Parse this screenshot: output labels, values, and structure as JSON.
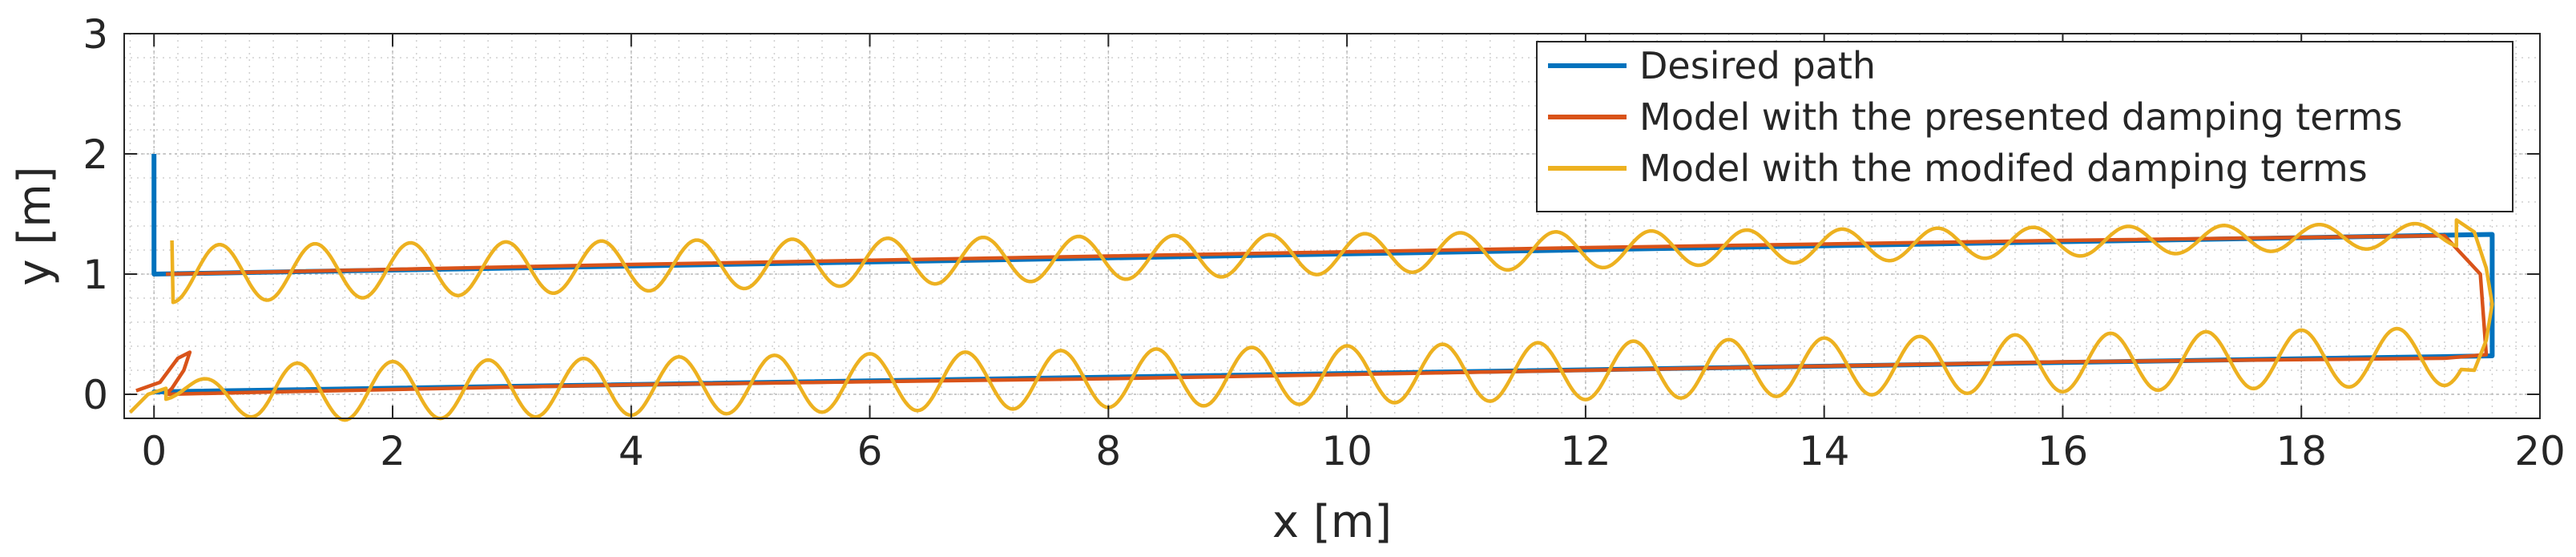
{
  "chart_data": {
    "type": "line",
    "title": "",
    "xlabel": "x [m]",
    "ylabel": "y [m]",
    "xlim": [
      -0.25,
      20
    ],
    "ylim": [
      -0.2,
      3
    ],
    "xticks": [
      0,
      2,
      4,
      6,
      8,
      10,
      12,
      14,
      16,
      18,
      20
    ],
    "yticks": [
      0,
      1,
      2,
      3
    ],
    "grid": true,
    "minor_grid": true,
    "legend_position": "top-right",
    "series": [
      {
        "name": "Desired path",
        "color": "#0072BD",
        "x": [
          0,
          0,
          19.6,
          19.6,
          0,
          0,
          0
        ],
        "y": [
          0,
          0.02,
          0.32,
          1.33,
          1.0,
          1.5,
          2.0
        ]
      },
      {
        "name": "Model with the presented damping terms",
        "color": "#D95319",
        "x": [
          -0.15,
          0.05,
          0.2,
          0.3,
          0.25,
          0.15,
          0.1,
          1.0,
          4.0,
          8.0,
          12.0,
          16.0,
          19.2,
          19.55,
          19.5,
          19.2,
          16.0,
          12.0,
          8.0,
          4.0,
          0.1
        ],
        "y": [
          0.03,
          0.1,
          0.3,
          0.35,
          0.2,
          0.05,
          0.0,
          0.02,
          0.08,
          0.13,
          0.2,
          0.27,
          0.3,
          0.33,
          1.0,
          1.32,
          1.28,
          1.22,
          1.15,
          1.08,
          1.0
        ]
      },
      {
        "name": "Model with the modifed damping terms",
        "color": "#EDB120",
        "generator": "oscillating path following the desired path",
        "wavelength_m": 0.8,
        "amplitude_m": 0.24
      }
    ]
  }
}
